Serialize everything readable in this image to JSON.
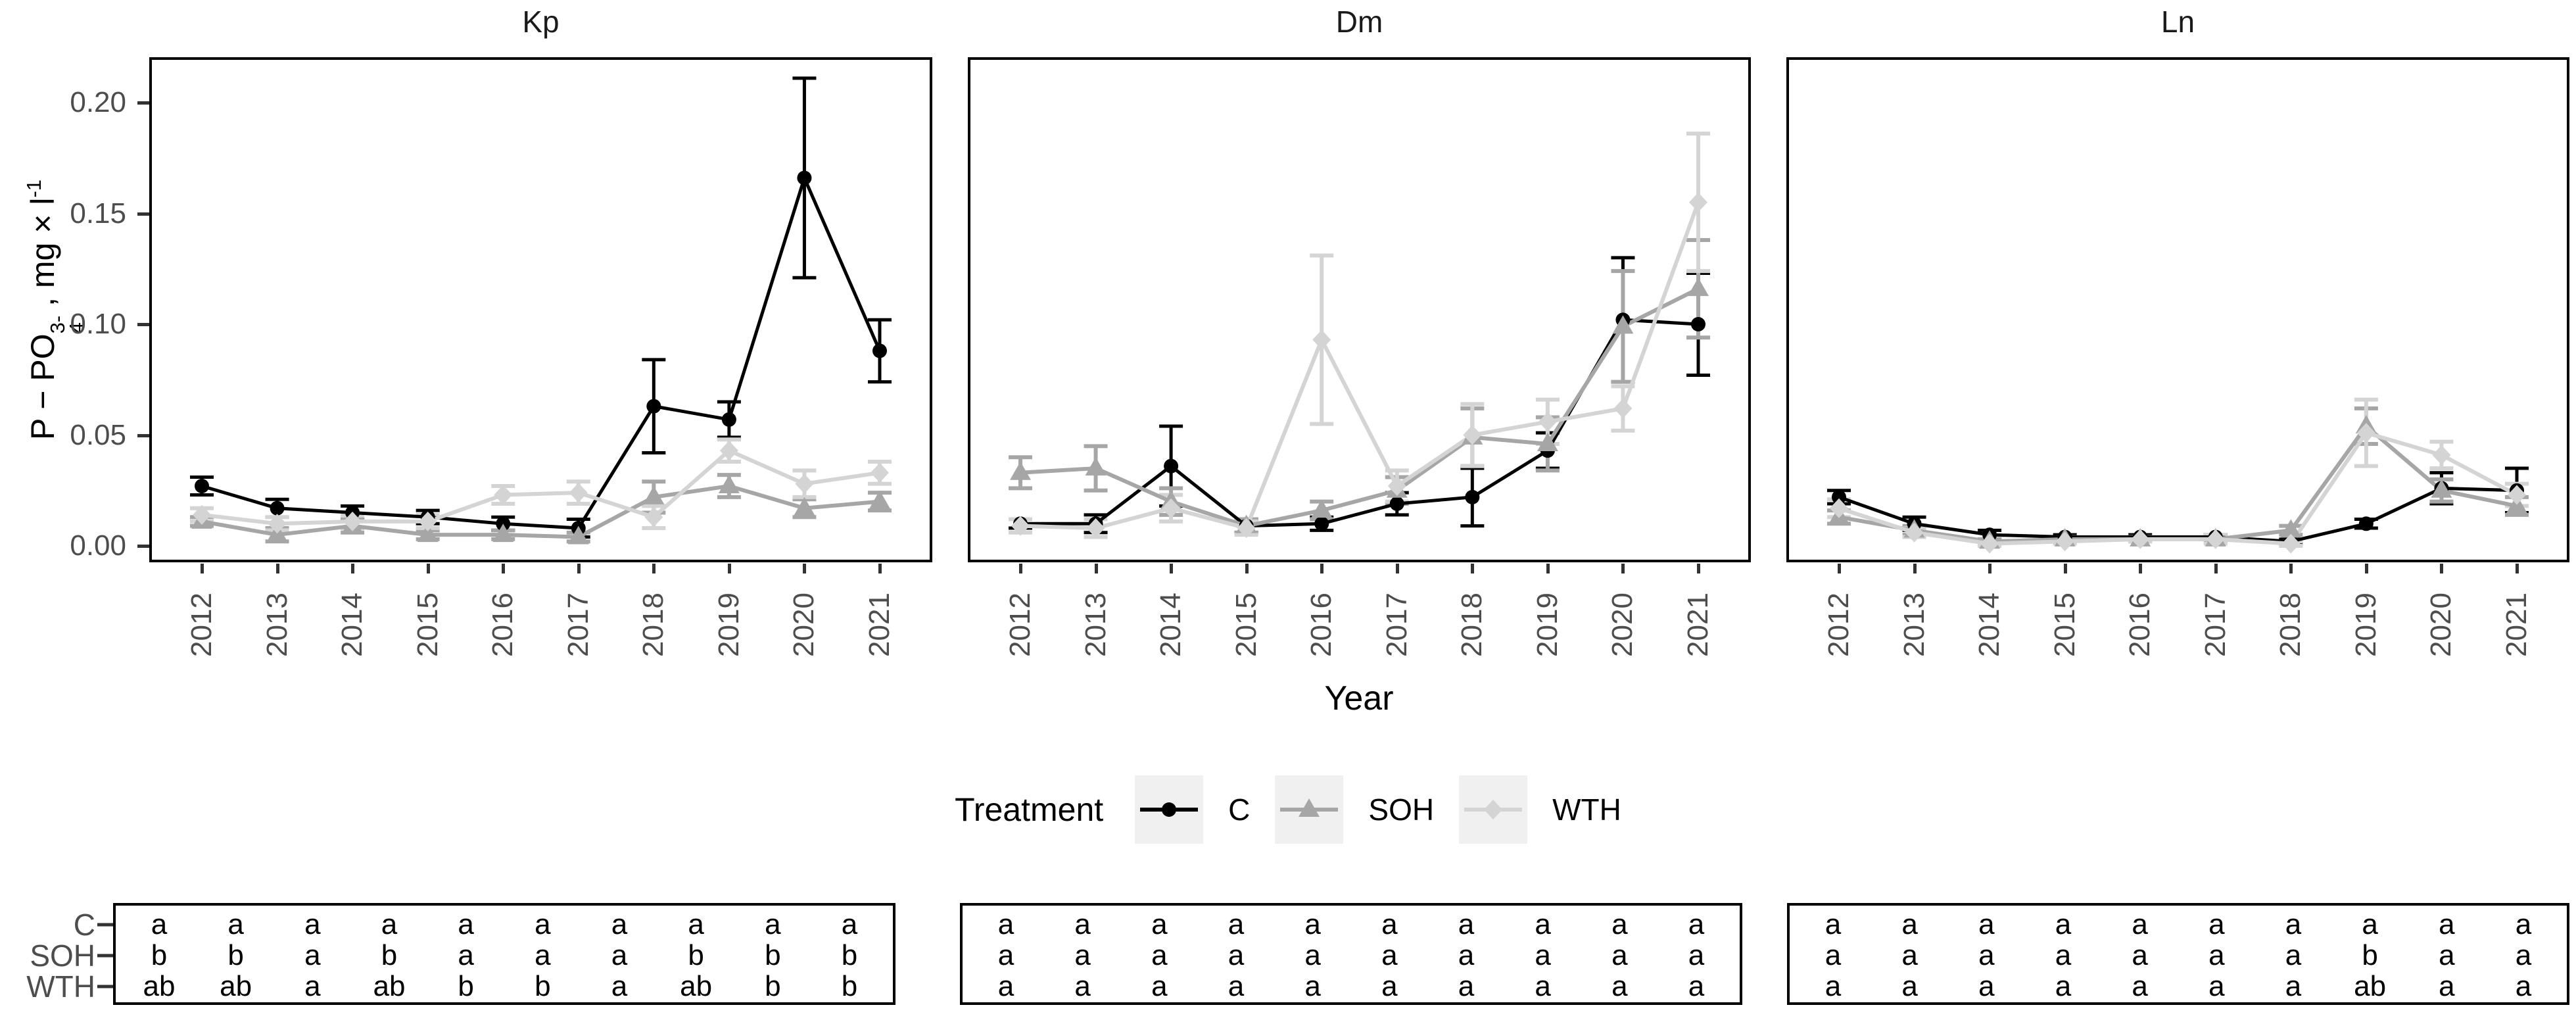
{
  "figure": {
    "y_axis": {
      "label_p1": "P − PO",
      "label_sup": "3-",
      "label_sub": "4",
      "label_p2": " , mg × l",
      "label_exp": "-1",
      "ticks": [
        "0.20",
        "0.15",
        "0.10",
        "0.05",
        "0.00"
      ],
      "tick_values": [
        0.2,
        0.15,
        0.1,
        0.05,
        0.0
      ]
    },
    "x_axis": {
      "label": "Year",
      "ticks": [
        "2012",
        "2013",
        "2014",
        "2015",
        "2016",
        "2017",
        "2018",
        "2019",
        "2020",
        "2021"
      ]
    }
  },
  "legend": {
    "title": "Treatment",
    "items": [
      {
        "label": "C",
        "color": "#000000",
        "marker": "circle",
        "key_bg": "#f0f0f0"
      },
      {
        "label": "SOH",
        "color": "#a6a6a6",
        "marker": "triangle",
        "key_bg": "#f0f0f0"
      },
      {
        "label": "WTH",
        "color": "#d4d4d4",
        "marker": "diamond",
        "key_bg": "#f0f0f0"
      }
    ]
  },
  "chart_data": [
    {
      "type": "line",
      "title": "Kp",
      "x": [
        2012,
        2013,
        2014,
        2015,
        2016,
        2017,
        2018,
        2019,
        2020,
        2021
      ],
      "xlabel": "Year",
      "ylabel": "P − PO4 3− , mg × l −1",
      "ylim": [
        0,
        0.21
      ],
      "grid": false,
      "legend_position": "bottom",
      "series": [
        {
          "name": "C",
          "marker": "circle",
          "color": "#000000",
          "values": [
            0.027,
            0.017,
            0.015,
            0.013,
            0.01,
            0.008,
            0.063,
            0.057,
            0.166,
            0.088
          ],
          "errors": [
            0.004,
            0.004,
            0.003,
            0.003,
            0.003,
            0.004,
            0.021,
            0.008,
            0.045,
            0.014
          ]
        },
        {
          "name": "SOH",
          "marker": "triangle",
          "color": "#a6a6a6",
          "values": [
            0.011,
            0.005,
            0.009,
            0.005,
            0.005,
            0.004,
            0.022,
            0.027,
            0.017,
            0.02
          ],
          "errors": [
            0.002,
            0.003,
            0.003,
            0.002,
            0.002,
            0.002,
            0.007,
            0.005,
            0.004,
            0.004
          ]
        },
        {
          "name": "WTH",
          "marker": "diamond",
          "color": "#d4d4d4",
          "values": [
            0.014,
            0.01,
            0.011,
            0.011,
            0.023,
            0.024,
            0.013,
            0.043,
            0.028,
            0.033
          ],
          "errors": [
            0.003,
            0.003,
            0.003,
            0.003,
            0.004,
            0.005,
            0.005,
            0.005,
            0.006,
            0.005
          ]
        }
      ]
    },
    {
      "type": "line",
      "title": "Dm",
      "x": [
        2012,
        2013,
        2014,
        2015,
        2016,
        2017,
        2018,
        2019,
        2020,
        2021
      ],
      "xlabel": "Year",
      "ylabel": "P − PO4 3− , mg × l −1",
      "ylim": [
        0,
        0.21
      ],
      "grid": false,
      "legend_position": "bottom",
      "series": [
        {
          "name": "C",
          "marker": "circle",
          "color": "#000000",
          "values": [
            0.01,
            0.01,
            0.036,
            0.009,
            0.01,
            0.019,
            0.022,
            0.043,
            0.102,
            0.1
          ],
          "errors": [
            0.002,
            0.004,
            0.018,
            0.003,
            0.003,
            0.005,
            0.013,
            0.008,
            0.028,
            0.023
          ]
        },
        {
          "name": "SOH",
          "marker": "triangle",
          "color": "#a6a6a6",
          "values": [
            0.033,
            0.035,
            0.02,
            0.009,
            0.016,
            0.025,
            0.049,
            0.046,
            0.099,
            0.116
          ],
          "errors": [
            0.007,
            0.01,
            0.006,
            0.003,
            0.004,
            0.006,
            0.013,
            0.012,
            0.025,
            0.022
          ]
        },
        {
          "name": "WTH",
          "marker": "diamond",
          "color": "#d4d4d4",
          "values": [
            0.009,
            0.008,
            0.017,
            0.008,
            0.093,
            0.027,
            0.05,
            0.056,
            0.062,
            0.155
          ],
          "errors": [
            0.003,
            0.004,
            0.006,
            0.003,
            0.038,
            0.007,
            0.014,
            0.01,
            0.01,
            0.031
          ]
        }
      ]
    },
    {
      "type": "line",
      "title": "Ln",
      "x": [
        2012,
        2013,
        2014,
        2015,
        2016,
        2017,
        2018,
        2019,
        2020,
        2021
      ],
      "xlabel": "Year",
      "ylabel": "P − PO4 3− , mg × l −1",
      "ylim": [
        0,
        0.21
      ],
      "grid": false,
      "legend_position": "bottom",
      "series": [
        {
          "name": "C",
          "marker": "circle",
          "color": "#000000",
          "values": [
            0.022,
            0.01,
            0.005,
            0.004,
            0.004,
            0.004,
            0.002,
            0.01,
            0.026,
            0.025
          ],
          "errors": [
            0.003,
            0.003,
            0.002,
            0.001,
            0.001,
            0.001,
            0.001,
            0.002,
            0.007,
            0.01
          ]
        },
        {
          "name": "SOH",
          "marker": "triangle",
          "color": "#a6a6a6",
          "values": [
            0.013,
            0.007,
            0.002,
            0.003,
            0.003,
            0.003,
            0.007,
            0.054,
            0.025,
            0.018
          ],
          "errors": [
            0.003,
            0.002,
            0.001,
            0.001,
            0.001,
            0.001,
            0.002,
            0.008,
            0.005,
            0.004
          ]
        },
        {
          "name": "WTH",
          "marker": "diamond",
          "color": "#d4d4d4",
          "values": [
            0.017,
            0.006,
            0.001,
            0.002,
            0.003,
            0.003,
            0.001,
            0.051,
            0.041,
            0.023
          ],
          "errors": [
            0.004,
            0.002,
            0.001,
            0.001,
            0.001,
            0.002,
            0.001,
            0.015,
            0.006,
            0.005
          ]
        }
      ]
    }
  ],
  "letters": {
    "row_labels": [
      "C",
      "SOH",
      "WTH"
    ],
    "panels": [
      {
        "title": "Kp",
        "rows": [
          [
            "a",
            "a",
            "a",
            "a",
            "a",
            "a",
            "a",
            "a",
            "a",
            "a"
          ],
          [
            "b",
            "b",
            "a",
            "b",
            "a",
            "a",
            "a",
            "b",
            "b",
            "b"
          ],
          [
            "ab",
            "ab",
            "a",
            "ab",
            "b",
            "b",
            "a",
            "ab",
            "b",
            "b"
          ]
        ]
      },
      {
        "title": "Dm",
        "rows": [
          [
            "a",
            "a",
            "a",
            "a",
            "a",
            "a",
            "a",
            "a",
            "a",
            "a"
          ],
          [
            "a",
            "a",
            "a",
            "a",
            "a",
            "a",
            "a",
            "a",
            "a",
            "a"
          ],
          [
            "a",
            "a",
            "a",
            "a",
            "a",
            "a",
            "a",
            "a",
            "a",
            "a"
          ]
        ]
      },
      {
        "title": "Ln",
        "rows": [
          [
            "a",
            "a",
            "a",
            "a",
            "a",
            "a",
            "a",
            "a",
            "a",
            "a"
          ],
          [
            "a",
            "a",
            "a",
            "a",
            "a",
            "a",
            "a",
            "b",
            "a",
            "a"
          ],
          [
            "a",
            "a",
            "a",
            "a",
            "a",
            "a",
            "a",
            "ab",
            "a",
            "a"
          ]
        ]
      }
    ]
  },
  "colors": {
    "axis_text": "#4d4d4d",
    "tick_mark": "#333333",
    "panel_border": "#000000"
  }
}
